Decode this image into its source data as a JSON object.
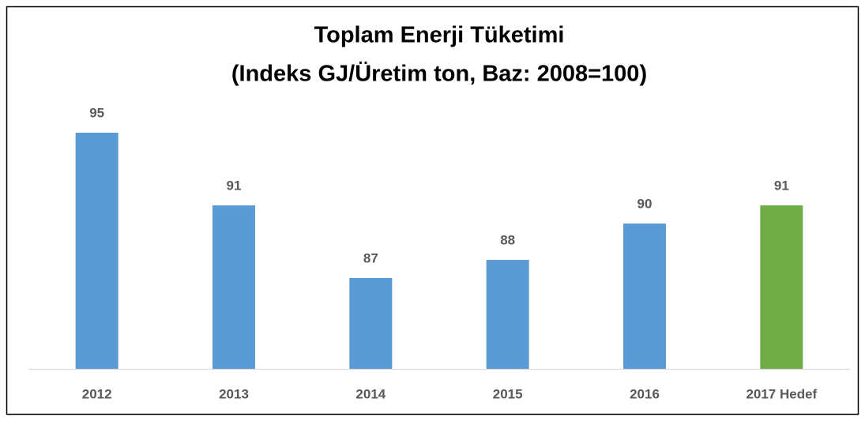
{
  "chart_data": {
    "type": "bar",
    "title": "Toplam Enerji Tüketimi",
    "subtitle": "(Indeks GJ/Üretim ton, Baz: 2008=100)",
    "categories": [
      "2012",
      "2013",
      "2014",
      "2015",
      "2016",
      "2017 Hedef"
    ],
    "values": [
      95,
      91,
      87,
      88,
      90,
      91
    ],
    "colors": [
      "#5b9bd5",
      "#5b9bd5",
      "#5b9bd5",
      "#5b9bd5",
      "#5b9bd5",
      "#70ad47"
    ],
    "ylim": [
      82,
      100
    ]
  }
}
